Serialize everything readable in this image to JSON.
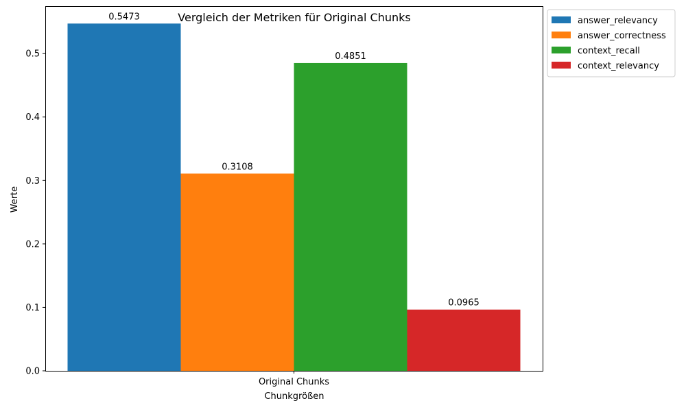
{
  "chart_data": {
    "type": "bar",
    "title": "Vergleich der Metriken für Original Chunks",
    "xlabel": "Chunkgrößen",
    "ylabel": "Werte",
    "categories": [
      "Original Chunks"
    ],
    "series": [
      {
        "name": "answer_relevancy",
        "values": [
          0.5473
        ],
        "label": "0.5473",
        "color": "#1f77b4"
      },
      {
        "name": "answer_correctness",
        "values": [
          0.3108
        ],
        "label": "0.3108",
        "color": "#ff7f0e"
      },
      {
        "name": "context_recall",
        "values": [
          0.4851
        ],
        "label": "0.4851",
        "color": "#2ca02c"
      },
      {
        "name": "context_relevancy",
        "values": [
          0.0965
        ],
        "label": "0.0965",
        "color": "#d62728"
      }
    ],
    "yticks": [
      {
        "value": 0.0,
        "label": "0.0"
      },
      {
        "value": 0.1,
        "label": "0.1"
      },
      {
        "value": 0.2,
        "label": "0.2"
      },
      {
        "value": 0.3,
        "label": "0.3"
      },
      {
        "value": 0.4,
        "label": "0.4"
      },
      {
        "value": 0.5,
        "label": "0.5"
      }
    ],
    "ylim": [
      0,
      0.5747
    ],
    "grid": false,
    "legend_position": "outside-top-right"
  }
}
